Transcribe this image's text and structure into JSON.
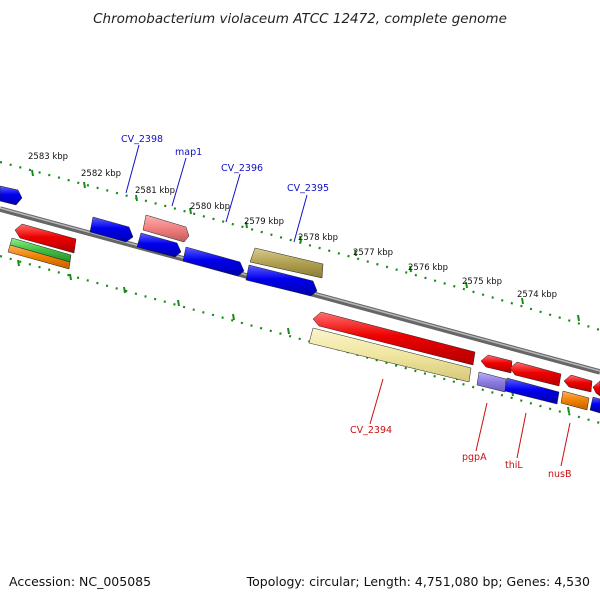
{
  "title": "Chromobacterium violaceum ATCC 12472, complete genome",
  "footer": {
    "accession": "Accession: NC_005085",
    "summary": "Topology: circular; Length: 4,751,080 bp; Genes: 4,530"
  },
  "ticks": [
    "2583 kbp",
    "2582 kbp",
    "2581 kbp",
    "2580 kbp",
    "2579 kbp",
    "2578 kbp",
    "2577 kbp",
    "2576 kbp",
    "2575 kbp",
    "2574 kbp"
  ],
  "gene_labels": {
    "top": [
      "CV_2398",
      "map1",
      "CV_2396",
      "CV_2395"
    ],
    "bottom": [
      "CV_2394",
      "pgpA",
      "thiL",
      "nusB"
    ]
  },
  "colors": {
    "forward_strand": "#e00000",
    "reverse_strand": "#0000e0",
    "backbone": "#888888",
    "ticks": "#1a8a1a",
    "olive": "#b0a050",
    "pale_yellow": "#f0e6a0",
    "pink": "#f08080",
    "lavender": "#8c7ce0",
    "orange": "#f08000",
    "green": "#40c040"
  }
}
